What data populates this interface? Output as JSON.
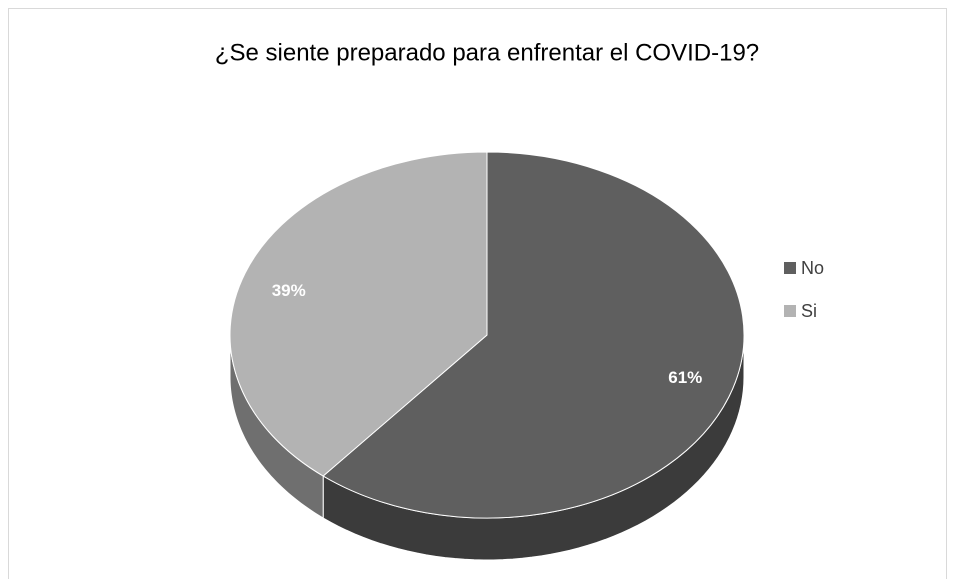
{
  "chart_data": {
    "type": "pie",
    "title": "¿Se siente preparado para enfrentar el COVID-19?",
    "categories": [
      "No",
      "Si"
    ],
    "values": [
      61,
      39
    ],
    "value_labels": [
      "61%",
      "39%"
    ],
    "colors": [
      "#5f5f5f",
      "#b3b3b3"
    ],
    "legend": "right"
  }
}
